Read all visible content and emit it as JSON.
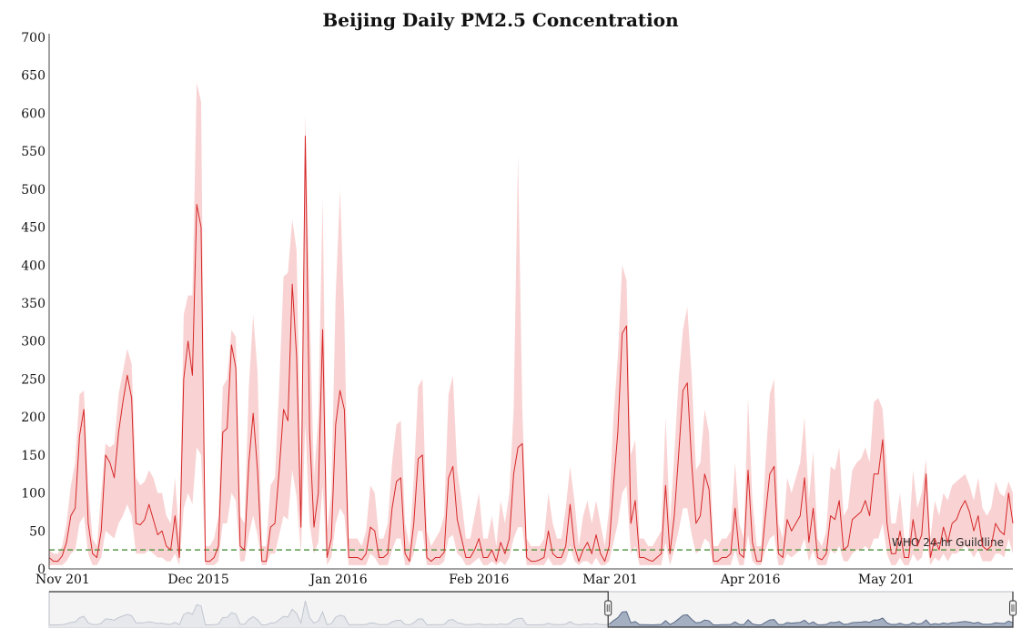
{
  "chart_data": {
    "type": "line",
    "title": "Beijing Daily PM2.5 Concentration",
    "xlabel": "",
    "ylabel": "",
    "ylim": [
      0,
      700
    ],
    "yticks": [
      0,
      50,
      100,
      150,
      200,
      250,
      300,
      350,
      400,
      450,
      500,
      550,
      600,
      650,
      700
    ],
    "x_start_date": "2015-10-29",
    "x_end_date": "2016-05-29",
    "xticks": [
      {
        "date": "2015-11-01",
        "label": "Nov 201"
      },
      {
        "date": "2015-12-01",
        "label": "Dec 2015"
      },
      {
        "date": "2016-01-01",
        "label": "Jan 2016"
      },
      {
        "date": "2016-02-01",
        "label": "Feb 2016"
      },
      {
        "date": "2016-03-01",
        "label": "Mar 201"
      },
      {
        "date": "2016-04-01",
        "label": "Apr 2016"
      },
      {
        "date": "2016-05-01",
        "label": "May 201"
      }
    ],
    "series": [
      {
        "daily_mean": [
          15,
          10,
          10,
          17,
          35,
          70,
          80,
          175,
          210,
          60,
          20,
          15,
          50,
          150,
          140,
          120,
          180,
          220,
          255,
          225,
          60,
          58,
          65,
          85,
          65,
          45,
          50,
          30,
          25,
          70,
          15,
          250,
          300,
          255,
          480,
          450,
          10,
          10,
          15,
          30,
          180,
          185,
          295,
          265,
          30,
          25,
          140,
          205,
          130,
          10,
          10,
          55,
          60,
          130,
          210,
          195,
          375,
          280,
          55,
          570,
          180,
          55,
          100,
          315,
          15,
          40,
          190,
          235,
          210,
          15,
          15,
          15,
          12,
          20,
          55,
          50,
          15,
          15,
          20,
          80,
          115,
          120,
          20,
          10,
          60,
          145,
          150,
          15,
          10,
          15,
          15,
          22,
          120,
          135,
          65,
          40,
          15,
          15,
          25,
          40,
          15,
          15,
          25,
          10,
          35,
          20,
          40,
          125,
          160,
          165,
          15,
          10,
          10,
          12,
          15,
          50,
          20,
          15,
          15,
          30,
          85,
          30,
          10,
          25,
          35,
          20,
          45,
          20,
          10,
          30,
          110,
          180,
          310,
          320,
          60,
          90,
          15,
          15,
          12,
          10,
          15,
          20,
          110,
          20,
          70,
          150,
          235,
          245,
          140,
          60,
          70,
          125,
          105,
          10,
          10,
          15,
          15,
          20,
          80,
          20,
          15,
          130,
          35,
          10,
          10,
          70,
          125,
          135,
          20,
          15,
          65,
          50,
          60,
          70,
          120,
          35,
          80,
          15,
          12,
          20,
          70,
          65,
          90,
          25,
          30,
          65,
          70,
          75,
          90,
          70,
          125,
          125,
          170,
          60,
          20,
          20,
          50,
          15,
          15,
          65,
          30,
          45,
          125,
          15,
          40,
          25,
          55,
          35,
          60,
          65,
          80,
          90,
          75,
          50,
          70,
          30,
          25,
          30,
          60,
          50,
          45,
          100,
          60
        ],
        "band": [
          [
            5,
            25
          ],
          [
            5,
            20
          ],
          [
            5,
            20
          ],
          [
            5,
            30
          ],
          [
            10,
            60
          ],
          [
            20,
            110
          ],
          [
            25,
            140
          ],
          [
            60,
            230
          ],
          [
            70,
            235
          ],
          [
            20,
            110
          ],
          [
            5,
            40
          ],
          [
            5,
            30
          ],
          [
            15,
            100
          ],
          [
            50,
            165
          ],
          [
            45,
            160
          ],
          [
            40,
            165
          ],
          [
            60,
            230
          ],
          [
            70,
            260
          ],
          [
            85,
            290
          ],
          [
            70,
            270
          ],
          [
            20,
            120
          ],
          [
            20,
            110
          ],
          [
            20,
            115
          ],
          [
            25,
            130
          ],
          [
            20,
            120
          ],
          [
            15,
            100
          ],
          [
            15,
            100
          ],
          [
            10,
            70
          ],
          [
            10,
            60
          ],
          [
            20,
            120
          ],
          [
            5,
            40
          ],
          [
            80,
            335
          ],
          [
            100,
            360
          ],
          [
            85,
            360
          ],
          [
            160,
            640
          ],
          [
            150,
            615
          ],
          [
            5,
            30
          ],
          [
            5,
            30
          ],
          [
            5,
            40
          ],
          [
            10,
            70
          ],
          [
            60,
            240
          ],
          [
            60,
            250
          ],
          [
            100,
            315
          ],
          [
            90,
            305
          ],
          [
            10,
            70
          ],
          [
            10,
            60
          ],
          [
            45,
            240
          ],
          [
            70,
            335
          ],
          [
            45,
            260
          ],
          [
            5,
            30
          ],
          [
            5,
            30
          ],
          [
            20,
            110
          ],
          [
            20,
            120
          ],
          [
            45,
            240
          ],
          [
            70,
            385
          ],
          [
            65,
            390
          ],
          [
            130,
            460
          ],
          [
            95,
            420
          ],
          [
            20,
            110
          ],
          [
            190,
            600
          ],
          [
            60,
            350
          ],
          [
            20,
            120
          ],
          [
            35,
            200
          ],
          [
            110,
            490
          ],
          [
            5,
            50
          ],
          [
            15,
            100
          ],
          [
            60,
            360
          ],
          [
            80,
            500
          ],
          [
            70,
            330
          ],
          [
            5,
            40
          ],
          [
            5,
            40
          ],
          [
            5,
            40
          ],
          [
            5,
            30
          ],
          [
            5,
            50
          ],
          [
            20,
            110
          ],
          [
            15,
            100
          ],
          [
            5,
            40
          ],
          [
            5,
            40
          ],
          [
            5,
            60
          ],
          [
            25,
            140
          ],
          [
            40,
            190
          ],
          [
            40,
            195
          ],
          [
            5,
            60
          ],
          [
            5,
            30
          ],
          [
            20,
            120
          ],
          [
            50,
            240
          ],
          [
            50,
            250
          ],
          [
            5,
            50
          ],
          [
            5,
            30
          ],
          [
            5,
            40
          ],
          [
            5,
            50
          ],
          [
            10,
            70
          ],
          [
            40,
            230
          ],
          [
            45,
            255
          ],
          [
            20,
            130
          ],
          [
            15,
            90
          ],
          [
            5,
            40
          ],
          [
            5,
            40
          ],
          [
            10,
            70
          ],
          [
            15,
            100
          ],
          [
            5,
            40
          ],
          [
            5,
            40
          ],
          [
            10,
            70
          ],
          [
            5,
            30
          ],
          [
            10,
            90
          ],
          [
            5,
            60
          ],
          [
            15,
            100
          ],
          [
            40,
            210
          ],
          [
            55,
            545
          ],
          [
            55,
            210
          ],
          [
            5,
            40
          ],
          [
            5,
            30
          ],
          [
            5,
            30
          ],
          [
            5,
            30
          ],
          [
            5,
            40
          ],
          [
            15,
            100
          ],
          [
            5,
            60
          ],
          [
            5,
            40
          ],
          [
            5,
            40
          ],
          [
            10,
            80
          ],
          [
            30,
            135
          ],
          [
            10,
            90
          ],
          [
            5,
            30
          ],
          [
            10,
            70
          ],
          [
            10,
            90
          ],
          [
            5,
            60
          ],
          [
            15,
            90
          ],
          [
            5,
            60
          ],
          [
            5,
            30
          ],
          [
            10,
            80
          ],
          [
            35,
            200
          ],
          [
            60,
            280
          ],
          [
            100,
            400
          ],
          [
            110,
            380
          ],
          [
            20,
            150
          ],
          [
            30,
            170
          ],
          [
            5,
            40
          ],
          [
            5,
            40
          ],
          [
            5,
            30
          ],
          [
            5,
            30
          ],
          [
            5,
            40
          ],
          [
            5,
            50
          ],
          [
            35,
            200
          ],
          [
            5,
            60
          ],
          [
            25,
            150
          ],
          [
            50,
            250
          ],
          [
            80,
            315
          ],
          [
            80,
            345
          ],
          [
            45,
            255
          ],
          [
            20,
            130
          ],
          [
            25,
            140
          ],
          [
            40,
            210
          ],
          [
            35,
            180
          ],
          [
            5,
            30
          ],
          [
            5,
            30
          ],
          [
            5,
            40
          ],
          [
            5,
            40
          ],
          [
            5,
            50
          ],
          [
            25,
            140
          ],
          [
            5,
            60
          ],
          [
            5,
            40
          ],
          [
            45,
            225
          ],
          [
            10,
            90
          ],
          [
            5,
            30
          ],
          [
            5,
            30
          ],
          [
            25,
            140
          ],
          [
            40,
            230
          ],
          [
            45,
            250
          ],
          [
            5,
            60
          ],
          [
            5,
            40
          ],
          [
            20,
            120
          ],
          [
            15,
            100
          ],
          [
            20,
            120
          ],
          [
            25,
            140
          ],
          [
            40,
            200
          ],
          [
            10,
            90
          ],
          [
            25,
            155
          ],
          [
            5,
            40
          ],
          [
            5,
            30
          ],
          [
            5,
            50
          ],
          [
            25,
            135
          ],
          [
            20,
            130
          ],
          [
            30,
            160
          ],
          [
            10,
            70
          ],
          [
            10,
            80
          ],
          [
            20,
            130
          ],
          [
            25,
            140
          ],
          [
            25,
            145
          ],
          [
            30,
            160
          ],
          [
            25,
            140
          ],
          [
            40,
            220
          ],
          [
            40,
            225
          ],
          [
            60,
            210
          ],
          [
            20,
            130
          ],
          [
            5,
            60
          ],
          [
            5,
            60
          ],
          [
            15,
            100
          ],
          [
            5,
            40
          ],
          [
            5,
            40
          ],
          [
            20,
            130
          ],
          [
            10,
            80
          ],
          [
            15,
            100
          ],
          [
            40,
            145
          ],
          [
            5,
            40
          ],
          [
            15,
            90
          ],
          [
            10,
            70
          ],
          [
            20,
            100
          ],
          [
            10,
            90
          ],
          [
            20,
            110
          ],
          [
            20,
            115
          ],
          [
            25,
            120
          ],
          [
            30,
            125
          ],
          [
            25,
            110
          ],
          [
            15,
            90
          ],
          [
            25,
            120
          ],
          [
            10,
            80
          ],
          [
            10,
            70
          ],
          [
            10,
            80
          ],
          [
            20,
            115
          ],
          [
            20,
            100
          ],
          [
            15,
            95
          ],
          [
            40,
            115
          ],
          [
            20,
            100
          ]
        ]
      }
    ],
    "reference_line": {
      "value": 25,
      "label": "WHO 24-hr Guildline"
    },
    "grid": false,
    "legend": "none",
    "colors": {
      "line": "#d62728",
      "band": "#f9d3d3",
      "reference": "#5a9a4a",
      "navigator_fill": "#8a98b0",
      "navigator_fill_unselected": "#e6e8ec",
      "navigator_line": "#5a6a85",
      "navigator_line_unselected": "#c0c6d0"
    },
    "navigator": {
      "selected_range": [
        0.58,
        1.0
      ],
      "handle_left_icon": "drag-handle-icon",
      "handle_right_icon": "drag-handle-icon"
    }
  }
}
